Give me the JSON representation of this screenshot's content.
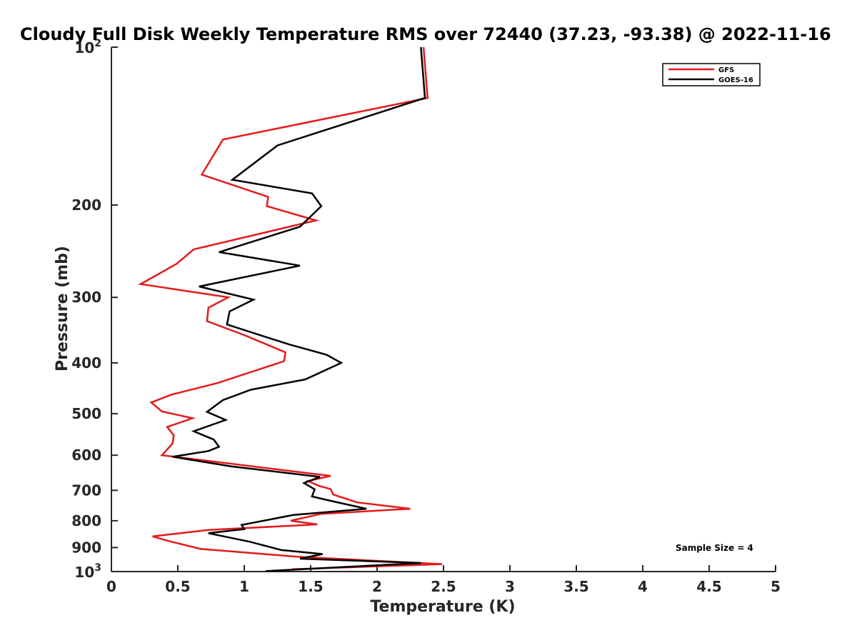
{
  "chart_data": {
    "type": "line",
    "title": "Cloudy Full Disk Weekly Temperature RMS over 72440 (37.23, -93.38) @ 2022-11-16",
    "xlabel": "Temperature (K)",
    "ylabel": "Pressure (mb)",
    "xlim": [
      0,
      5
    ],
    "ylim": [
      100,
      1000
    ],
    "y_scale": "log",
    "y_reversed": true,
    "grid": false,
    "legend_position": "top-right",
    "x_ticks": [
      {
        "value": 0,
        "label": "0"
      },
      {
        "value": 0.5,
        "label": "0.5"
      },
      {
        "value": 1,
        "label": "1"
      },
      {
        "value": 1.5,
        "label": "1.5"
      },
      {
        "value": 2,
        "label": "2"
      },
      {
        "value": 2.5,
        "label": "2.5"
      },
      {
        "value": 3,
        "label": "3"
      },
      {
        "value": 3.5,
        "label": "3.5"
      },
      {
        "value": 4,
        "label": "4"
      },
      {
        "value": 4.5,
        "label": "4.5"
      },
      {
        "value": 5,
        "label": "5"
      }
    ],
    "y_ticks": [
      {
        "value": 100,
        "base": "10",
        "exp": "2"
      },
      {
        "value": 200,
        "label": "200"
      },
      {
        "value": 300,
        "label": "300"
      },
      {
        "value": 400,
        "label": "400"
      },
      {
        "value": 500,
        "label": "500"
      },
      {
        "value": 600,
        "label": "600"
      },
      {
        "value": 700,
        "label": "700"
      },
      {
        "value": 800,
        "label": "800"
      },
      {
        "value": 900,
        "label": "900"
      },
      {
        "value": 1000,
        "base": "10",
        "exp": "3"
      }
    ],
    "annotation": "Sample Size = 4",
    "series": [
      {
        "name": "GFS",
        "color": "#e41a1c",
        "points": [
          [
            2.35,
            100
          ],
          [
            2.38,
            125
          ],
          [
            0.84,
            150
          ],
          [
            0.68,
            175
          ],
          [
            1.18,
            193
          ],
          [
            1.17,
            201
          ],
          [
            1.54,
            214
          ],
          [
            0.62,
            243
          ],
          [
            0.49,
            259
          ],
          [
            0.22,
            283
          ],
          [
            0.88,
            300
          ],
          [
            0.73,
            314
          ],
          [
            0.72,
            333
          ],
          [
            1.0,
            354
          ],
          [
            1.31,
            382
          ],
          [
            1.3,
            397
          ],
          [
            0.8,
            437
          ],
          [
            0.45,
            460
          ],
          [
            0.3,
            476
          ],
          [
            0.38,
            495
          ],
          [
            0.61,
            510
          ],
          [
            0.42,
            530
          ],
          [
            0.47,
            550
          ],
          [
            0.46,
            570
          ],
          [
            0.38,
            600
          ],
          [
            1.65,
            657
          ],
          [
            1.48,
            672
          ],
          [
            1.56,
            686
          ],
          [
            1.65,
            696
          ],
          [
            1.67,
            713
          ],
          [
            1.85,
            738
          ],
          [
            2.25,
            759
          ],
          [
            1.58,
            776
          ],
          [
            1.35,
            800
          ],
          [
            1.55,
            813
          ],
          [
            0.73,
            833
          ],
          [
            0.31,
            857
          ],
          [
            0.45,
            877
          ],
          [
            0.67,
            905
          ],
          [
            1.4,
            937
          ],
          [
            2.49,
            968
          ],
          [
            1.36,
            990
          ]
        ]
      },
      {
        "name": "GOES-16",
        "color": "#000000",
        "points": [
          [
            2.33,
            100
          ],
          [
            2.36,
            125
          ],
          [
            1.25,
            154
          ],
          [
            0.91,
            179
          ],
          [
            1.51,
            190
          ],
          [
            1.58,
            201
          ],
          [
            1.42,
            220
          ],
          [
            0.81,
            246
          ],
          [
            1.42,
            261
          ],
          [
            0.66,
            286
          ],
          [
            1.07,
            303
          ],
          [
            0.89,
            319
          ],
          [
            0.87,
            338
          ],
          [
            1.34,
            369
          ],
          [
            1.62,
            386
          ],
          [
            1.73,
            400
          ],
          [
            1.46,
            430
          ],
          [
            1.05,
            450
          ],
          [
            0.84,
            471
          ],
          [
            0.72,
            496
          ],
          [
            0.86,
            514
          ],
          [
            0.62,
            540
          ],
          [
            0.77,
            560
          ],
          [
            0.81,
            578
          ],
          [
            0.73,
            589
          ],
          [
            0.46,
            604
          ],
          [
            0.9,
            630
          ],
          [
            1.57,
            660
          ],
          [
            1.45,
            678
          ],
          [
            1.53,
            697
          ],
          [
            1.51,
            719
          ],
          [
            1.65,
            733
          ],
          [
            1.92,
            759
          ],
          [
            1.37,
            780
          ],
          [
            0.98,
            815
          ],
          [
            1.0,
            830
          ],
          [
            0.73,
            845
          ],
          [
            1.04,
            877
          ],
          [
            1.28,
            910
          ],
          [
            1.59,
            926
          ],
          [
            1.42,
            945
          ],
          [
            2.33,
            963
          ],
          [
            1.16,
            998
          ]
        ]
      }
    ]
  }
}
